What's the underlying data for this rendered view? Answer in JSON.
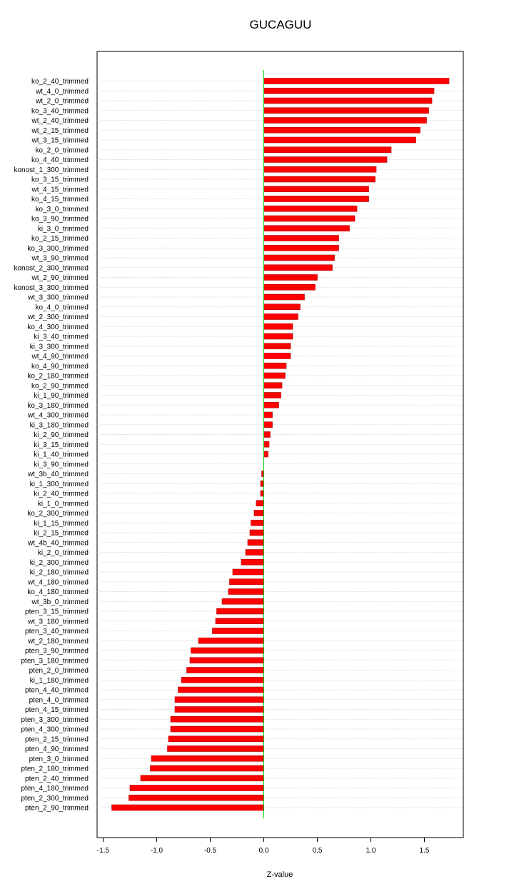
{
  "chart_data": {
    "type": "bar",
    "orientation": "horizontal",
    "title": "GUCAGUU",
    "xlabel": "Z-value",
    "ylabel": "",
    "xlim": [
      -1.5,
      1.75
    ],
    "xticks": [
      -1.5,
      -1.0,
      -0.5,
      0.0,
      0.5,
      1.0,
      1.5
    ],
    "xtick_labels": [
      "-1.5",
      "-1.0",
      "-0.5",
      "0.0",
      "0.5",
      "1.0",
      "1.5"
    ],
    "grid": "horizontal-dotted",
    "bar_color": "#ff0000",
    "zero_line_color": "#00cc00",
    "categories": [
      "ko_2_40_trimmed",
      "wt_4_0_trimmed",
      "wt_2_0_trimmed",
      "ko_3_40_trimmed",
      "wt_2_40_trimmed",
      "wt_2_15_trimmed",
      "wt_3_15_trimmed",
      "ko_2_0_trimmed",
      "ko_4_40_trimmed",
      "konost_1_300_trimmed",
      "ko_3_15_trimmed",
      "wt_4_15_trimmed",
      "ko_4_15_trimmed",
      "ko_3_0_trimmed",
      "ko_3_90_trimmed",
      "ki_3_0_trimmed",
      "ko_2_15_trimmed",
      "ko_3_300_trimmed",
      "wt_3_90_trimmed",
      "konost_2_300_trimmed",
      "wt_2_90_trimmed",
      "konost_3_300_trimmed",
      "wt_3_300_trimmed",
      "ko_4_0_trimmed",
      "wt_2_300_trimmed",
      "ko_4_300_trimmed",
      "ki_3_40_trimmed",
      "ki_3_300_trimmed",
      "wt_4_90_trimmed",
      "ko_4_90_trimmed",
      "ko_2_180_trimmed",
      "ko_2_90_trimmed",
      "ki_1_90_trimmed",
      "ko_3_180_trimmed",
      "wt_4_300_trimmed",
      "ki_3_180_trimmed",
      "ki_2_90_trimmed",
      "ki_3_15_trimmed",
      "ki_1_40_trimmed",
      "ki_3_90_trimmed",
      "wt_3b_40_trimmed",
      "ki_1_300_trimmed",
      "ki_2_40_trimmed",
      "ki_1_0_trimmed",
      "ko_2_300_trimmed",
      "ki_1_15_trimmed",
      "ki_2_15_trimmed",
      "wt_4b_40_trimmed",
      "ki_2_0_trimmed",
      "ki_2_300_trimmed",
      "ki_2_180_trimmed",
      "wt_4_180_trimmed",
      "ko_4_180_trimmed",
      "wt_3b_0_trimmed",
      "pten_3_15_trimmed",
      "wt_3_180_trimmed",
      "pten_3_40_trimmed",
      "wt_2_180_trimmed",
      "pten_3_90_trimmed",
      "pten_3_180_trimmed",
      "pten_2_0_trimmed",
      "ki_1_180_trimmed",
      "pten_4_40_trimmed",
      "pten_4_0_trimmed",
      "pten_4_15_trimmed",
      "pten_3_300_trimmed",
      "pten_4_300_trimmed",
      "pten_2_15_trimmed",
      "pten_4_90_trimmed",
      "pten_3_0_trimmed",
      "pten_2_180_trimmed",
      "pten_2_40_trimmed",
      "pten_4_180_trimmed",
      "pten_2_300_trimmed",
      "pten_2_90_trimmed"
    ],
    "values": [
      1.73,
      1.59,
      1.57,
      1.54,
      1.52,
      1.46,
      1.42,
      1.19,
      1.15,
      1.05,
      1.04,
      0.98,
      0.98,
      0.87,
      0.85,
      0.8,
      0.7,
      0.7,
      0.66,
      0.64,
      0.5,
      0.48,
      0.38,
      0.34,
      0.32,
      0.27,
      0.27,
      0.25,
      0.25,
      0.21,
      0.2,
      0.17,
      0.16,
      0.14,
      0.08,
      0.08,
      0.06,
      0.05,
      0.04,
      0.0,
      -0.02,
      -0.03,
      -0.03,
      -0.07,
      -0.09,
      -0.12,
      -0.13,
      -0.15,
      -0.17,
      -0.21,
      -0.29,
      -0.32,
      -0.33,
      -0.39,
      -0.44,
      -0.45,
      -0.48,
      -0.61,
      -0.68,
      -0.69,
      -0.72,
      -0.77,
      -0.8,
      -0.83,
      -0.83,
      -0.87,
      -0.87,
      -0.89,
      -0.9,
      -1.05,
      -1.06,
      -1.15,
      -1.25,
      -1.26,
      -1.42
    ]
  }
}
